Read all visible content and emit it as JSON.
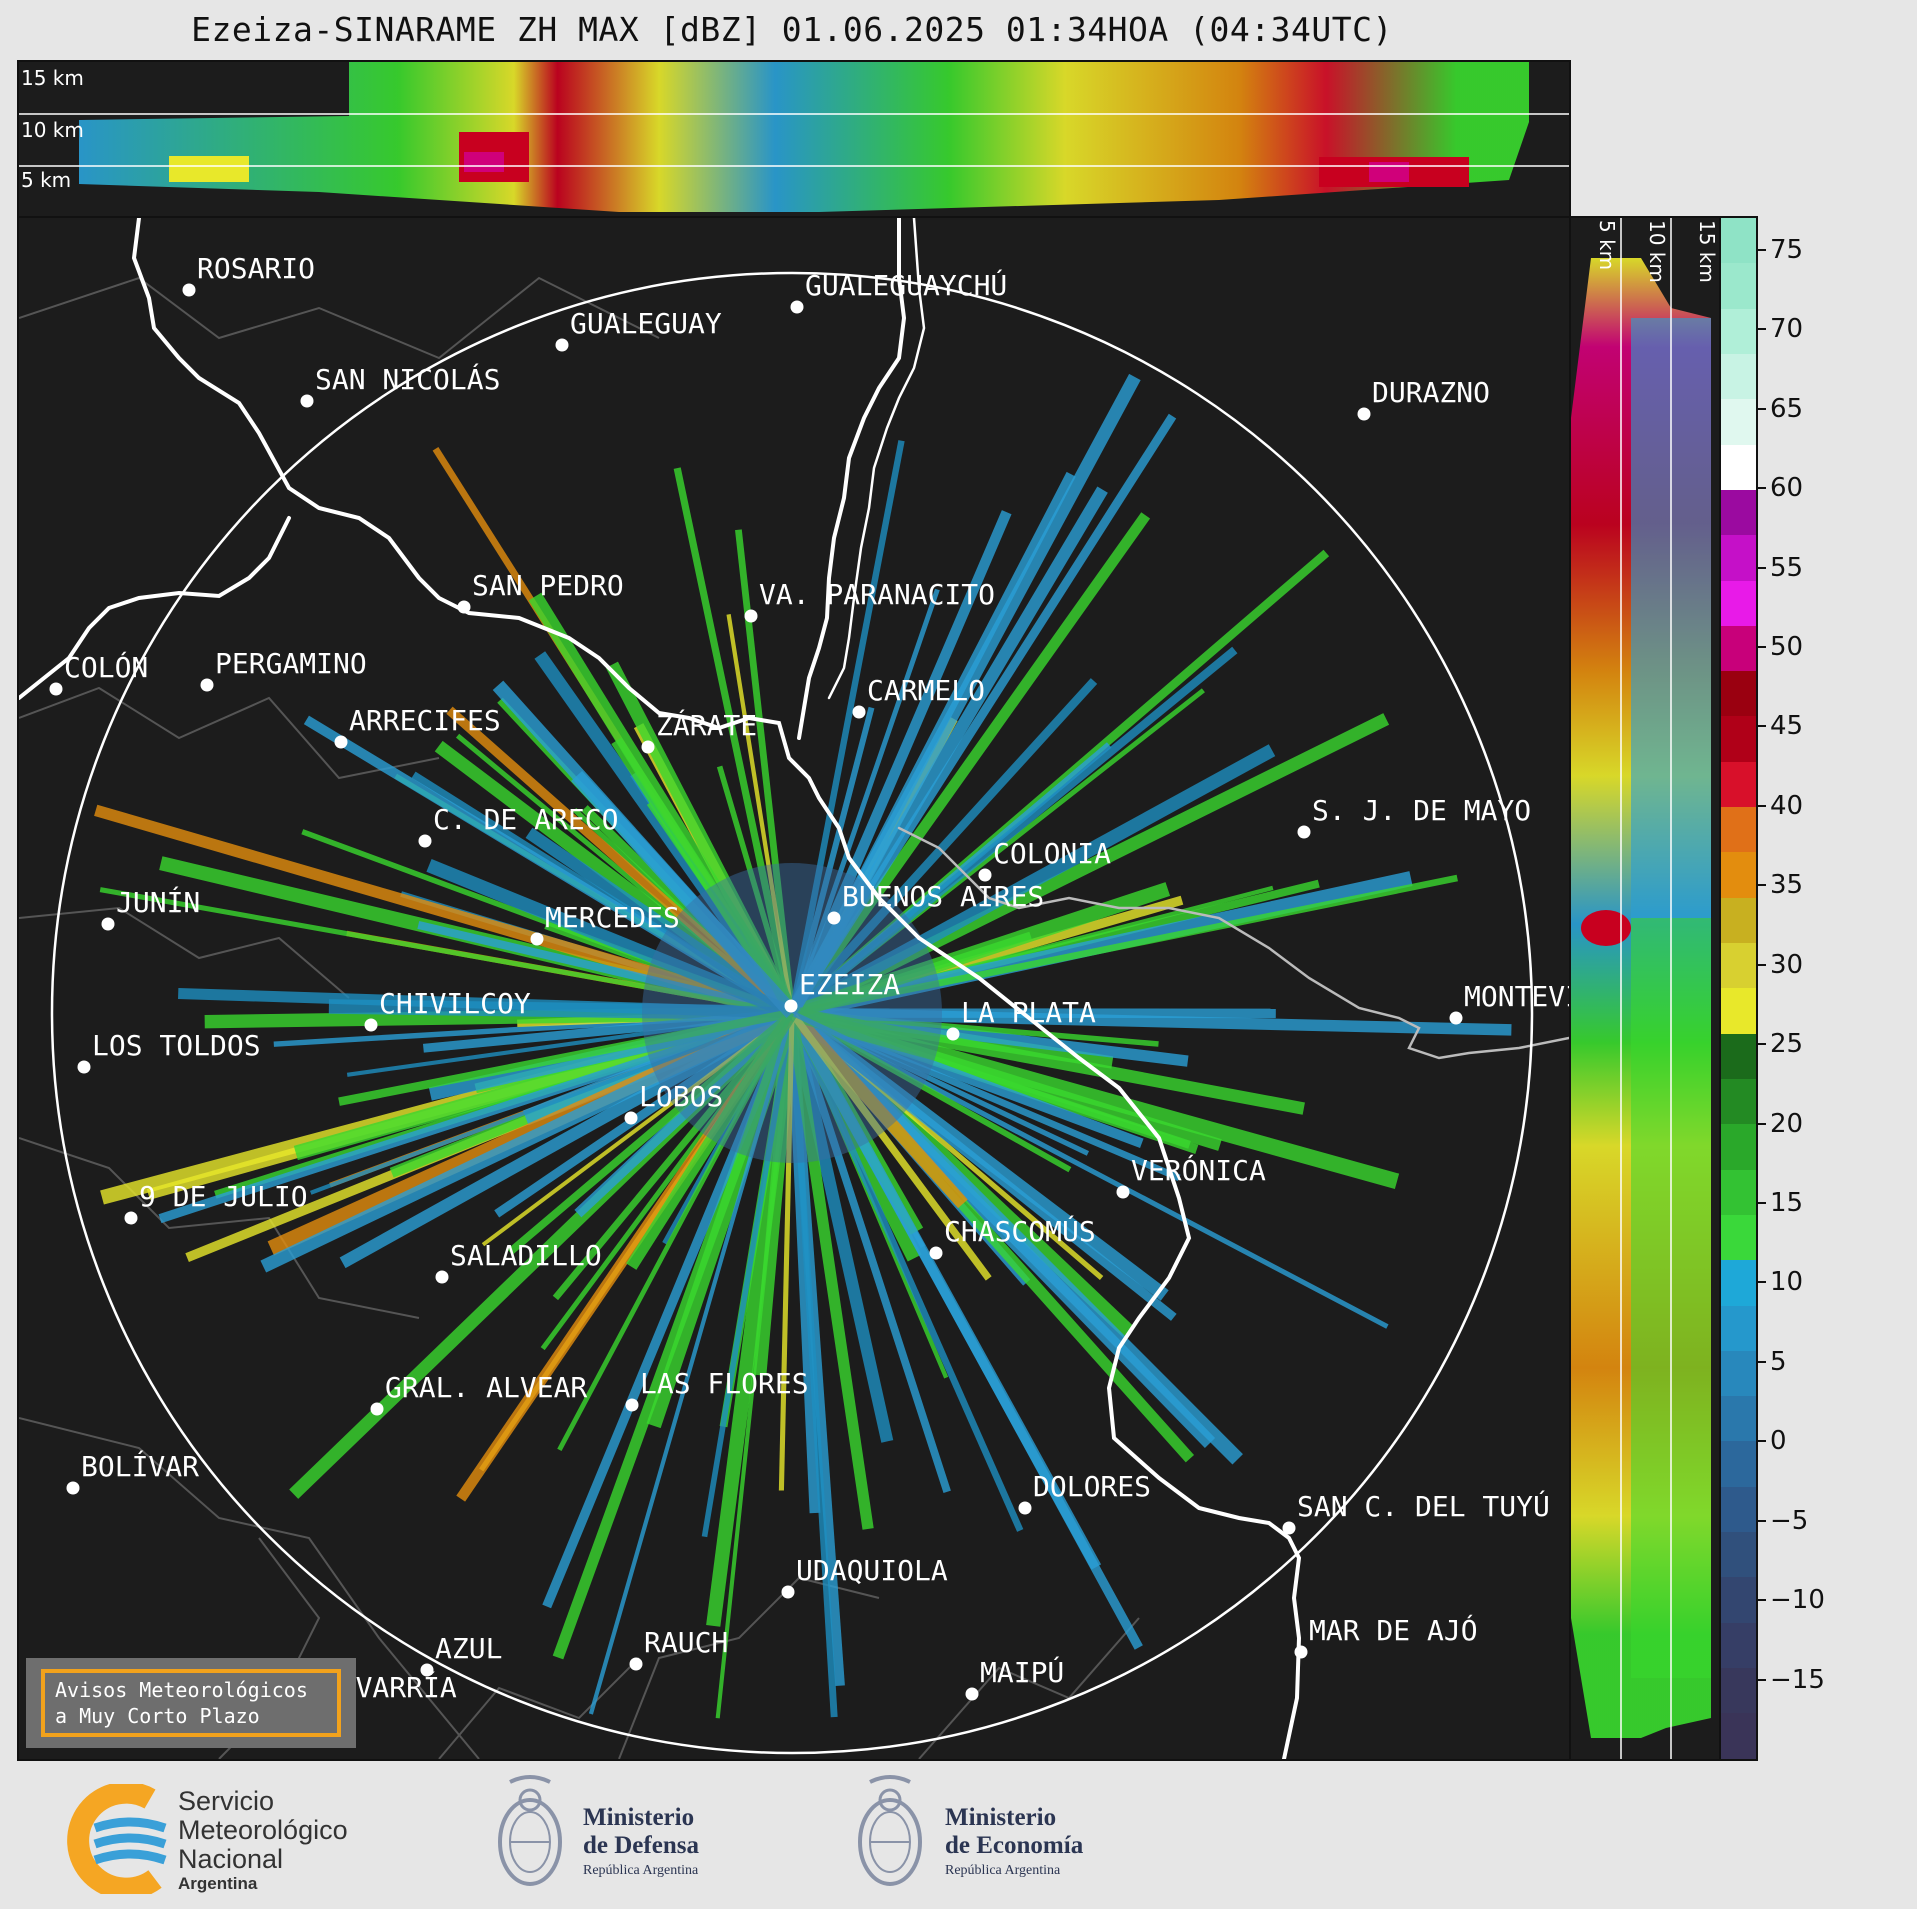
{
  "title": "Ezeiza-SINARAME ZH MAX [dBZ] 01.06.2025 01:34HOA (04:34UTC)",
  "top_panel": {
    "altitude_labels": [
      "15 km",
      "10 km",
      "5 km"
    ]
  },
  "side_panel": {
    "altitude_labels": [
      "5 km",
      "10 km",
      "15 km"
    ]
  },
  "colorbar": {
    "unit": "dBZ",
    "ticks": [
      "75",
      "70",
      "65",
      "60",
      "55",
      "50",
      "45",
      "40",
      "35",
      "30",
      "25",
      "20",
      "15",
      "10",
      "5",
      "0",
      "−5",
      "−10",
      "−15"
    ],
    "range": [
      -20,
      77
    ]
  },
  "cities": [
    {
      "name": "ROSARIO"
    },
    {
      "name": "GUALEGUAYCHÚ"
    },
    {
      "name": "GUALEGUAY"
    },
    {
      "name": "SAN NICOLÁS"
    },
    {
      "name": "DURAZNO"
    },
    {
      "name": "SAN PEDRO"
    },
    {
      "name": "VA. PARANACITO"
    },
    {
      "name": "COLÓN"
    },
    {
      "name": "PERGAMINO"
    },
    {
      "name": "CARMELO"
    },
    {
      "name": "ARRECIFES"
    },
    {
      "name": "ZÁRATE"
    },
    {
      "name": "S. J. DE MAYO"
    },
    {
      "name": "C. DE ARECO"
    },
    {
      "name": "COLONIA"
    },
    {
      "name": "JUNÍN"
    },
    {
      "name": "MERCEDES"
    },
    {
      "name": "BUENOS AIRES"
    },
    {
      "name": "MONTEVIDEO"
    },
    {
      "name": "EZEIZA"
    },
    {
      "name": "CHIVILCOY"
    },
    {
      "name": "LA PLATA"
    },
    {
      "name": "LOS TOLDOS"
    },
    {
      "name": "LOBOS"
    },
    {
      "name": "VERÓNICA"
    },
    {
      "name": "9 DE JULIO"
    },
    {
      "name": "CHASCOMÚS"
    },
    {
      "name": "SALADILLO"
    },
    {
      "name": "GRAL. ALVEAR"
    },
    {
      "name": "LAS FLORES"
    },
    {
      "name": "BOLÍVAR"
    },
    {
      "name": "DOLORES"
    },
    {
      "name": "SAN C. DEL TUYÚ"
    },
    {
      "name": "UDAQUIOLA"
    },
    {
      "name": "MAR DE AJÓ"
    },
    {
      "name": "AZUL"
    },
    {
      "name": "RAUCH"
    },
    {
      "name": "MAIPÚ"
    },
    {
      "name": "OLAVARRÍA"
    }
  ],
  "notice": {
    "line1": "Avisos Meteorológicos",
    "line2": "a Muy Corto Plazo"
  },
  "footer": {
    "smn": {
      "line1": "Servicio",
      "line2": "Meteorológico",
      "line3": "Nacional",
      "line4": "Argentina"
    },
    "defensa": {
      "line1": "Ministerio",
      "line2": "de Defensa",
      "line3": "República Argentina"
    },
    "economia": {
      "line1": "Ministerio",
      "line2": "de Economía",
      "line3": "República Argentina"
    }
  },
  "colors": {
    "notice_border": "#f2a21c",
    "smn_orange": "#f5a623",
    "smn_blue": "#3aa0d8",
    "panel_bg": "#1c1c1c"
  }
}
